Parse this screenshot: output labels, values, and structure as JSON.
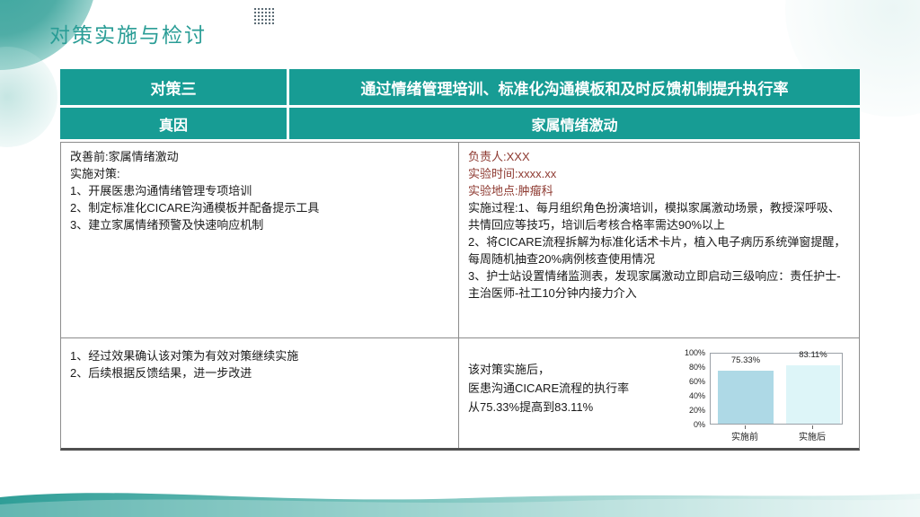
{
  "slide": {
    "title": "对策实施与检讨",
    "accent_color": "#179c94"
  },
  "table": {
    "header": [
      {
        "label": "对策三",
        "value": "通过情绪管理培训、标准化沟通模板和及时反馈机制提升执行率"
      },
      {
        "label": "真因",
        "value": "家属情绪激动"
      }
    ],
    "plan_cell": {
      "lines": [
        "改善前:家属情绪激动",
        "实施对策:",
        "1、开展医患沟通情绪管理专项培训",
        "2、制定标准化CICARE沟通模板并配备提示工具",
        "3、建立家属情绪预警及快速响应机制"
      ]
    },
    "execution_cell": {
      "meta_lines": [
        "负责人:XXX",
        "实验时间:xxxx.xx",
        "实验地点:肿瘤科"
      ],
      "process_lines": [
        "实施过程:1、每月组织角色扮演培训，模拟家属激动场景，教授深呼吸、共情回应等技巧，培训后考核合格率需达90%以上",
        "2、将CICARE流程拆解为标准化话术卡片，植入电子病历系统弹窗提醒，每周随机抽查20%病例核查使用情况",
        "3、护士站设置情绪监测表，发现家属激动立即启动三级响应：责任护士-主治医师-社工10分钟内接力介入"
      ]
    },
    "review_cell": {
      "lines": [
        "1、经过效果确认该对策为有效对策继续实施",
        "2、后续根据反馈结果，进一步改进"
      ]
    },
    "effect_cell": {
      "lines": [
        "该对策实施后，",
        "医患沟通CICARE流程的执行率",
        "从75.33%提高到83.11%"
      ]
    }
  },
  "chart_data": {
    "type": "bar",
    "title": "",
    "xlabel": "",
    "ylabel": "",
    "categories": [
      "实施前",
      "实施后"
    ],
    "values": [
      75.33,
      83.11
    ],
    "value_labels": [
      "75.33%",
      "83.11%"
    ],
    "bar_colors": [
      "#aed9e6",
      "#ddf5f8"
    ],
    "ylim": [
      0,
      100
    ],
    "yticks": [
      "100%",
      "80%",
      "60%",
      "40%",
      "20%",
      "0%"
    ],
    "grid": false,
    "legend": "none"
  }
}
